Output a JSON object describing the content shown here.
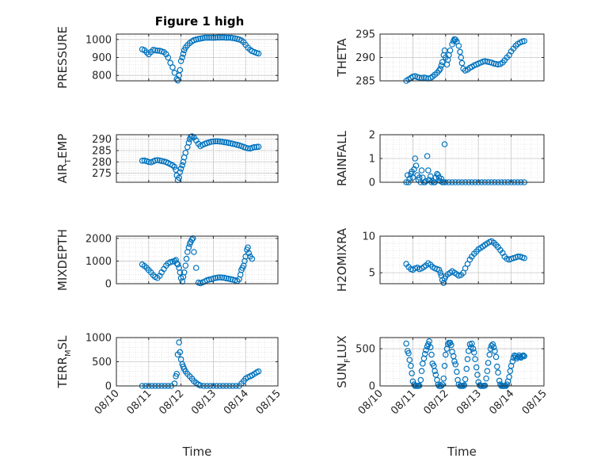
{
  "title": "Figure 1 high",
  "colors": {
    "marker": "#0072BD",
    "axes": "#262626",
    "grid": "#d6d6d6"
  },
  "chart_data": [
    {
      "type": "scatter",
      "ylabel": "PRESSURE",
      "xlim": [
        0,
        5
      ],
      "ylim": [
        770,
        1030
      ],
      "yticks": [
        800,
        900,
        1000
      ],
      "xticks": [
        "08/10",
        "08/11",
        "08/12",
        "08/13",
        "08/14",
        "08/15"
      ],
      "grid": true,
      "x": [
        0.8,
        0.87,
        0.94,
        1.0,
        1.07,
        1.14,
        1.2,
        1.27,
        1.34,
        1.4,
        1.47,
        1.54,
        1.6,
        1.67,
        1.74,
        1.8,
        1.87,
        1.9,
        1.94,
        1.97,
        2.0,
        2.04,
        2.07,
        2.1,
        2.14,
        2.2,
        2.27,
        2.34,
        2.4,
        2.47,
        2.54,
        2.6,
        2.67,
        2.74,
        2.8,
        2.87,
        2.94,
        3.0,
        3.07,
        3.14,
        3.2,
        3.27,
        3.34,
        3.4,
        3.47,
        3.54,
        3.6,
        3.67,
        3.74,
        3.8,
        3.87,
        3.94,
        4.0,
        4.07,
        4.14,
        4.2,
        4.27,
        4.34,
        4.4
      ],
      "y": [
        945,
        940,
        928,
        918,
        930,
        942,
        940,
        938,
        937,
        934,
        930,
        918,
        900,
        870,
        845,
        815,
        780,
        772,
        800,
        830,
        880,
        900,
        920,
        940,
        955,
        968,
        980,
        990,
        996,
        1000,
        1003,
        1005,
        1007,
        1010,
        1010,
        1010,
        1010,
        1010,
        1010,
        1011,
        1011,
        1011,
        1011,
        1010,
        1010,
        1010,
        1008,
        1006,
        1003,
        1000,
        995,
        985,
        970,
        955,
        943,
        935,
        930,
        925,
        922
      ]
    },
    {
      "type": "scatter",
      "ylabel": "THETA",
      "xlim": [
        0,
        5
      ],
      "ylim": [
        285,
        295
      ],
      "yticks": [
        285,
        290,
        295
      ],
      "xticks": [
        "08/10",
        "08/11",
        "08/12",
        "08/13",
        "08/14",
        "08/15"
      ],
      "grid": true,
      "x": [
        0.8,
        0.87,
        0.94,
        1.0,
        1.07,
        1.14,
        1.2,
        1.27,
        1.34,
        1.4,
        1.47,
        1.54,
        1.6,
        1.67,
        1.74,
        1.8,
        1.84,
        1.87,
        1.9,
        1.94,
        1.97,
        2.0,
        2.04,
        2.07,
        2.1,
        2.14,
        2.2,
        2.24,
        2.27,
        2.3,
        2.34,
        2.4,
        2.44,
        2.47,
        2.5,
        2.54,
        2.6,
        2.67,
        2.74,
        2.8,
        2.87,
        2.94,
        3.0,
        3.07,
        3.14,
        3.2,
        3.27,
        3.34,
        3.4,
        3.47,
        3.54,
        3.6,
        3.67,
        3.74,
        3.8,
        3.87,
        3.94,
        4.0,
        4.07,
        4.14,
        4.2,
        4.27,
        4.34,
        4.4
      ],
      "y": [
        285.0,
        285.3,
        285.6,
        285.9,
        286.0,
        285.8,
        285.7,
        285.6,
        285.7,
        285.6,
        285.5,
        285.6,
        285.9,
        286.3,
        286.7,
        287.2,
        287.6,
        288.3,
        289.0,
        290.5,
        291.5,
        290.0,
        288.5,
        289.5,
        290.5,
        291.5,
        292.8,
        293.5,
        293.9,
        293.8,
        293.4,
        292.5,
        291.2,
        290.0,
        288.8,
        287.6,
        287.2,
        287.4,
        287.8,
        288.0,
        288.3,
        288.5,
        288.7,
        288.9,
        289.1,
        289.2,
        289.1,
        289.0,
        288.9,
        288.7,
        288.6,
        288.5,
        288.6,
        288.9,
        289.4,
        290.0,
        290.5,
        291.3,
        291.9,
        292.5,
        292.9,
        293.2,
        293.4,
        293.5
      ]
    },
    {
      "type": "scatter",
      "ylabel": "AIR",
      "ylabel_sub": "T",
      "ylabel_after": "EMP",
      "xlim": [
        0,
        5
      ],
      "ylim": [
        271,
        292
      ],
      "yticks": [
        275,
        280,
        285,
        290
      ],
      "xticks": [
        "08/10",
        "08/11",
        "08/12",
        "08/13",
        "08/14",
        "08/15"
      ],
      "grid": true,
      "x": [
        0.8,
        0.87,
        0.94,
        1.0,
        1.07,
        1.14,
        1.2,
        1.27,
        1.34,
        1.4,
        1.47,
        1.54,
        1.6,
        1.67,
        1.74,
        1.8,
        1.84,
        1.87,
        1.9,
        1.94,
        1.97,
        2.0,
        2.04,
        2.07,
        2.1,
        2.14,
        2.2,
        2.24,
        2.27,
        2.3,
        2.34,
        2.4,
        2.47,
        2.54,
        2.6,
        2.67,
        2.74,
        2.8,
        2.87,
        2.94,
        3.0,
        3.07,
        3.14,
        3.2,
        3.27,
        3.34,
        3.4,
        3.47,
        3.54,
        3.6,
        3.67,
        3.74,
        3.8,
        3.87,
        3.94,
        4.0,
        4.07,
        4.14,
        4.2,
        4.27,
        4.34,
        4.4
      ],
      "y": [
        280.5,
        280.6,
        280.3,
        280.0,
        279.8,
        280.2,
        280.6,
        280.8,
        280.6,
        280.4,
        280.2,
        279.9,
        279.5,
        279.0,
        278.5,
        277.8,
        276.5,
        274.0,
        272.0,
        273.0,
        275.5,
        277.0,
        278.5,
        280.0,
        282.0,
        284.0,
        286.5,
        288.5,
        290.0,
        291.0,
        291.3,
        290.8,
        289.5,
        288.0,
        287.0,
        287.5,
        288.0,
        288.3,
        288.6,
        288.9,
        289.0,
        289.1,
        289.1,
        289.0,
        288.9,
        288.7,
        288.6,
        288.4,
        288.2,
        288.0,
        287.8,
        287.5,
        287.3,
        287.0,
        286.6,
        286.3,
        286.0,
        285.9,
        286.2,
        286.5,
        286.6,
        286.7
      ]
    },
    {
      "type": "scatter",
      "ylabel": "RAINFALL",
      "xlim": [
        0,
        5
      ],
      "ylim": [
        0,
        2
      ],
      "yticks": [
        0,
        1,
        2
      ],
      "xticks": [
        "08/10",
        "08/11",
        "08/12",
        "08/13",
        "08/14",
        "08/15"
      ],
      "grid": true,
      "x": [
        0.8,
        0.84,
        0.87,
        0.9,
        0.94,
        0.97,
        1.0,
        1.04,
        1.07,
        1.1,
        1.14,
        1.17,
        1.2,
        1.24,
        1.27,
        1.3,
        1.34,
        1.37,
        1.4,
        1.44,
        1.47,
        1.5,
        1.54,
        1.57,
        1.6,
        1.64,
        1.67,
        1.7,
        1.74,
        1.77,
        1.8,
        1.84,
        1.87,
        1.9,
        1.94,
        1.97,
        2.0,
        2.1,
        2.2,
        2.3,
        2.4,
        2.5,
        2.6,
        2.7,
        2.8,
        2.9,
        3.0,
        3.1,
        3.2,
        3.3,
        3.4,
        3.5,
        3.6,
        3.7,
        3.8,
        3.9,
        4.0,
        4.1,
        4.2,
        4.3,
        4.4
      ],
      "y": [
        0,
        0.3,
        0,
        0.15,
        0.35,
        0.45,
        0.2,
        0.55,
        1.0,
        0.7,
        0.3,
        0.1,
        0.2,
        0,
        0.5,
        0.2,
        0,
        0,
        0.05,
        1.1,
        0.5,
        0.1,
        0.25,
        0,
        0.05,
        0,
        0,
        0.2,
        0.35,
        0.3,
        0.2,
        0.05,
        0.15,
        0,
        0,
        1.6,
        0,
        0,
        0,
        0,
        0,
        0,
        0,
        0,
        0,
        0,
        0,
        0,
        0,
        0,
        0,
        0,
        0,
        0,
        0,
        0,
        0,
        0,
        0,
        0,
        0
      ]
    },
    {
      "type": "scatter",
      "ylabel": "MIXDEPTH",
      "xlim": [
        0,
        5
      ],
      "ylim": [
        0,
        2100
      ],
      "yticks": [
        0,
        1000,
        2000
      ],
      "xticks": [
        "08/10",
        "08/11",
        "08/12",
        "08/13",
        "08/14",
        "08/15"
      ],
      "grid": true,
      "x": [
        0.8,
        0.87,
        0.94,
        1.0,
        1.07,
        1.14,
        1.2,
        1.27,
        1.34,
        1.4,
        1.47,
        1.54,
        1.6,
        1.67,
        1.74,
        1.8,
        1.84,
        1.87,
        1.9,
        1.94,
        1.97,
        2.0,
        2.04,
        2.07,
        2.1,
        2.14,
        2.17,
        2.2,
        2.24,
        2.27,
        2.3,
        2.34,
        2.37,
        2.4,
        2.47,
        2.54,
        2.6,
        2.67,
        2.74,
        2.8,
        2.87,
        2.94,
        3.0,
        3.07,
        3.14,
        3.2,
        3.27,
        3.34,
        3.4,
        3.47,
        3.54,
        3.6,
        3.67,
        3.74,
        3.8,
        3.84,
        3.87,
        3.9,
        3.94,
        3.97,
        4.0,
        4.04,
        4.07,
        4.1,
        4.14,
        4.2
      ],
      "y": [
        850,
        780,
        700,
        600,
        500,
        380,
        300,
        250,
        350,
        500,
        650,
        800,
        900,
        950,
        980,
        1000,
        1050,
        900,
        850,
        700,
        500,
        250,
        100,
        300,
        500,
        800,
        1100,
        1400,
        1600,
        1750,
        1850,
        1950,
        2000,
        1400,
        700,
        50,
        20,
        60,
        100,
        150,
        180,
        200,
        230,
        250,
        270,
        280,
        270,
        260,
        240,
        220,
        200,
        180,
        150,
        120,
        200,
        400,
        600,
        700,
        800,
        1000,
        1200,
        1500,
        1600,
        1350,
        1200,
        1100
      ]
    },
    {
      "type": "scatter",
      "ylabel": "H2OMIXRA",
      "xlim": [
        0,
        5
      ],
      "ylim": [
        3.5,
        10
      ],
      "yticks": [
        5,
        10
      ],
      "xticks": [
        "08/10",
        "08/11",
        "08/12",
        "08/13",
        "08/14",
        "08/15"
      ],
      "grid": true,
      "x": [
        0.8,
        0.87,
        0.94,
        1.0,
        1.07,
        1.14,
        1.2,
        1.27,
        1.34,
        1.4,
        1.47,
        1.54,
        1.6,
        1.67,
        1.74,
        1.8,
        1.84,
        1.87,
        1.9,
        1.94,
        1.97,
        2.0,
        2.07,
        2.14,
        2.2,
        2.27,
        2.34,
        2.4,
        2.47,
        2.54,
        2.6,
        2.67,
        2.74,
        2.8,
        2.87,
        2.94,
        3.0,
        3.07,
        3.14,
        3.2,
        3.27,
        3.34,
        3.4,
        3.47,
        3.54,
        3.6,
        3.67,
        3.74,
        3.8,
        3.87,
        3.94,
        4.0,
        4.07,
        4.14,
        4.2,
        4.27,
        4.34,
        4.4
      ],
      "y": [
        6.2,
        5.8,
        5.5,
        5.4,
        5.6,
        5.7,
        5.5,
        5.6,
        5.8,
        6.0,
        6.3,
        6.1,
        5.8,
        5.6,
        5.5,
        5.4,
        5.0,
        4.6,
        4.0,
        3.6,
        4.2,
        4.5,
        4.8,
        5.0,
        5.2,
        5.0,
        4.8,
        4.6,
        4.7,
        5.0,
        5.6,
        6.2,
        6.8,
        7.2,
        7.6,
        7.9,
        8.2,
        8.4,
        8.6,
        8.8,
        9.0,
        9.2,
        9.3,
        9.1,
        8.8,
        8.5,
        8.1,
        7.7,
        7.2,
        6.9,
        6.8,
        6.9,
        7.0,
        7.1,
        7.2,
        7.2,
        7.1,
        7.0
      ]
    },
    {
      "type": "scatter",
      "ylabel": "TERR",
      "ylabel_sub": "M",
      "ylabel_after": "SL",
      "xlim": [
        0,
        5
      ],
      "ylim": [
        0,
        1000
      ],
      "yticks": [
        0,
        500,
        1000
      ],
      "xticks": [
        "08/10",
        "08/11",
        "08/12",
        "08/13",
        "08/14",
        "08/15"
      ],
      "xlabel": "Time",
      "grid": true,
      "x": [
        0.8,
        0.9,
        1.0,
        1.1,
        1.2,
        1.3,
        1.4,
        1.5,
        1.6,
        1.7,
        1.8,
        1.84,
        1.87,
        1.9,
        1.94,
        1.97,
        2.0,
        2.04,
        2.07,
        2.1,
        2.14,
        2.2,
        2.27,
        2.34,
        2.4,
        2.47,
        2.54,
        2.6,
        2.7,
        2.8,
        2.9,
        3.0,
        3.1,
        3.2,
        3.3,
        3.4,
        3.5,
        3.6,
        3.7,
        3.8,
        3.87,
        3.94,
        4.0,
        4.07,
        4.14,
        4.2,
        4.27,
        4.34,
        4.4
      ],
      "y": [
        0,
        0,
        0,
        0,
        0,
        0,
        0,
        0,
        0,
        0,
        50,
        200,
        250,
        650,
        900,
        700,
        550,
        450,
        400,
        350,
        300,
        250,
        200,
        150,
        100,
        60,
        30,
        10,
        0,
        0,
        0,
        0,
        0,
        0,
        0,
        0,
        0,
        0,
        0,
        0,
        50,
        100,
        150,
        180,
        200,
        220,
        250,
        280,
        300
      ]
    },
    {
      "type": "scatter",
      "ylabel": "SUN",
      "ylabel_sub": "F",
      "ylabel_after": "LUX",
      "xlim": [
        0,
        5
      ],
      "ylim": [
        0,
        650
      ],
      "yticks": [
        0,
        500
      ],
      "xticks": [
        "08/10",
        "08/11",
        "08/12",
        "08/13",
        "08/14",
        "08/15"
      ],
      "xlabel": "Time",
      "grid": true,
      "x": [
        0.8,
        0.84,
        0.87,
        0.9,
        0.94,
        0.97,
        1.0,
        1.04,
        1.07,
        1.1,
        1.14,
        1.17,
        1.2,
        1.24,
        1.27,
        1.3,
        1.34,
        1.37,
        1.4,
        1.44,
        1.47,
        1.5,
        1.54,
        1.57,
        1.6,
        1.64,
        1.67,
        1.7,
        1.74,
        1.77,
        1.8,
        1.84,
        1.87,
        1.9,
        1.94,
        1.97,
        2.0,
        2.04,
        2.07,
        2.1,
        2.14,
        2.17,
        2.2,
        2.24,
        2.27,
        2.3,
        2.34,
        2.37,
        2.4,
        2.44,
        2.47,
        2.5,
        2.54,
        2.57,
        2.6,
        2.64,
        2.67,
        2.7,
        2.74,
        2.77,
        2.8,
        2.84,
        2.87,
        2.9,
        2.94,
        2.97,
        3.0,
        3.04,
        3.07,
        3.1,
        3.14,
        3.17,
        3.2,
        3.24,
        3.27,
        3.3,
        3.34,
        3.37,
        3.4,
        3.44,
        3.47,
        3.5,
        3.54,
        3.57,
        3.6,
        3.64,
        3.67,
        3.7,
        3.74,
        3.77,
        3.8,
        3.84,
        3.87,
        3.9,
        3.94,
        3.97,
        4.0,
        4.04,
        4.07,
        4.1,
        4.14,
        4.17,
        4.2,
        4.24,
        4.27,
        4.3,
        4.34,
        4.37,
        4.4
      ],
      "y": [
        570,
        470,
        440,
        350,
        270,
        170,
        60,
        20,
        0,
        0,
        0,
        0,
        5,
        80,
        200,
        300,
        370,
        430,
        480,
        530,
        560,
        600,
        520,
        420,
        300,
        270,
        200,
        150,
        80,
        20,
        0,
        0,
        0,
        20,
        100,
        270,
        420,
        500,
        560,
        580,
        580,
        550,
        460,
        400,
        330,
        290,
        190,
        80,
        20,
        0,
        0,
        0,
        0,
        10,
        90,
        230,
        360,
        470,
        560,
        520,
        570,
        500,
        450,
        360,
        250,
        150,
        50,
        10,
        0,
        0,
        0,
        0,
        5,
        100,
        200,
        310,
        420,
        500,
        540,
        560,
        520,
        470,
        390,
        260,
        180,
        70,
        20,
        0,
        0,
        0,
        0,
        0,
        20,
        60,
        120,
        200,
        270,
        330,
        380,
        410,
        400,
        370,
        390,
        410,
        390,
        380,
        400,
        410,
        400
      ]
    }
  ]
}
